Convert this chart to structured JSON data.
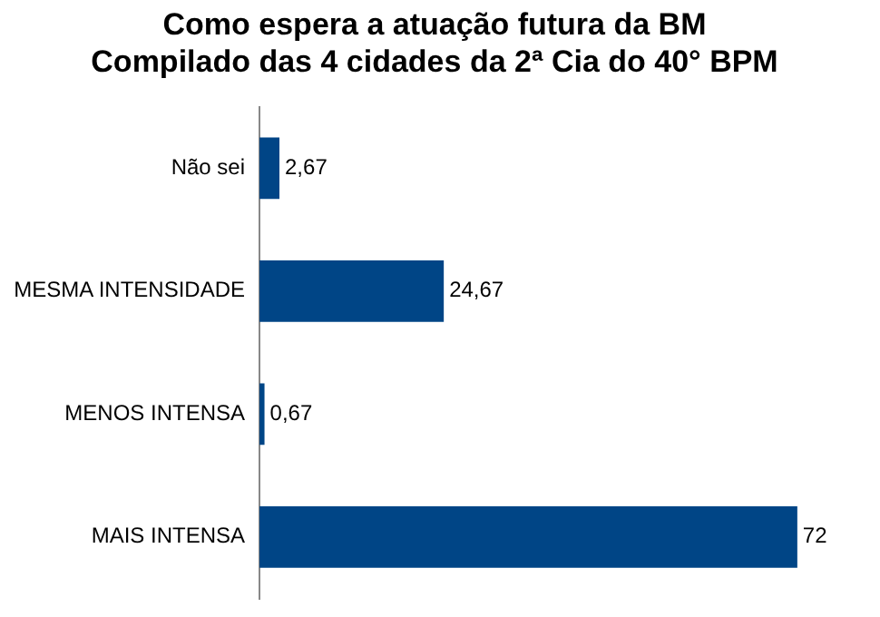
{
  "chart_data": {
    "type": "bar",
    "orientation": "horizontal",
    "title": "Como espera a atuação futura da BM\nCompilado das 4 cidades da 2ª Cia do 40° BPM",
    "categories": [
      "Não sei",
      "MESMA INTENSIDADE",
      "MENOS INTENSA",
      "MAIS INTENSA"
    ],
    "values": [
      2.67,
      24.67,
      0.67,
      72
    ],
    "value_labels": [
      "2,67",
      "24,67",
      "0,67",
      "72"
    ],
    "color": "#004586",
    "legend": false,
    "tick_labels": "y"
  }
}
